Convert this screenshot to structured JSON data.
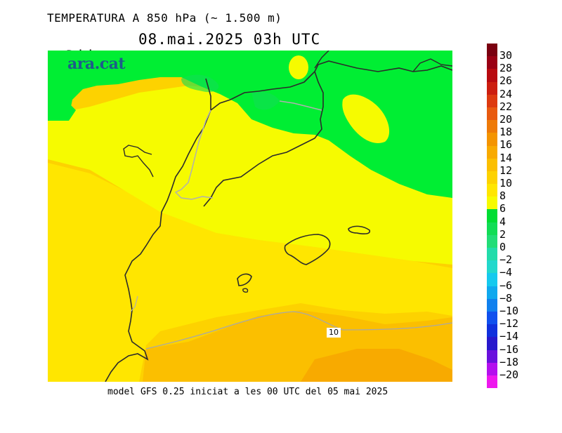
{
  "header": {
    "title": "TEMPERATURA A 850 hPa (~ 1.500 m)",
    "day": "Dijous",
    "date": "08.mai.2025 03h UTC"
  },
  "logo": "ara.cat",
  "footer": "model GFS 0.25 iniciat a les 00 UTC del 05 mai 2025",
  "contour_label": "10",
  "colorbar": {
    "labels": [
      "30",
      "28",
      "26",
      "24",
      "22",
      "20",
      "18",
      "16",
      "14",
      "12",
      "10",
      "8",
      "6",
      "4",
      "2",
      "0",
      "−2",
      "−4",
      "−6",
      "−8",
      "−10",
      "−12",
      "−14",
      "−16",
      "−18",
      "−20"
    ],
    "colors": [
      "#7a0010",
      "#9a0014",
      "#b80a10",
      "#cc1e10",
      "#dd3a10",
      "#e85a10",
      "#ee7a08",
      "#f49400",
      "#f8aa00",
      "#fbbf00",
      "#fdd200",
      "#ffe600",
      "#f6fb00",
      "#00dd33",
      "#11dd55",
      "#22dd77",
      "#22dcaa",
      "#22d8cc",
      "#15c9ee",
      "#10a8ee",
      "#1080ee",
      "#1050ee",
      "#1030dd",
      "#2818cc",
      "#6a10dd",
      "#b410ee",
      "#ee18ee"
    ]
  },
  "map_colors": {
    "green": "#00ee33",
    "yellow_light": "#f6fb00",
    "yellow": "#ffe600",
    "gold": "#fdd200",
    "gold_dark": "#fbbf00",
    "orange": "#f8aa00",
    "coast": "#2b2b2b",
    "border": "#b0b0b0"
  }
}
